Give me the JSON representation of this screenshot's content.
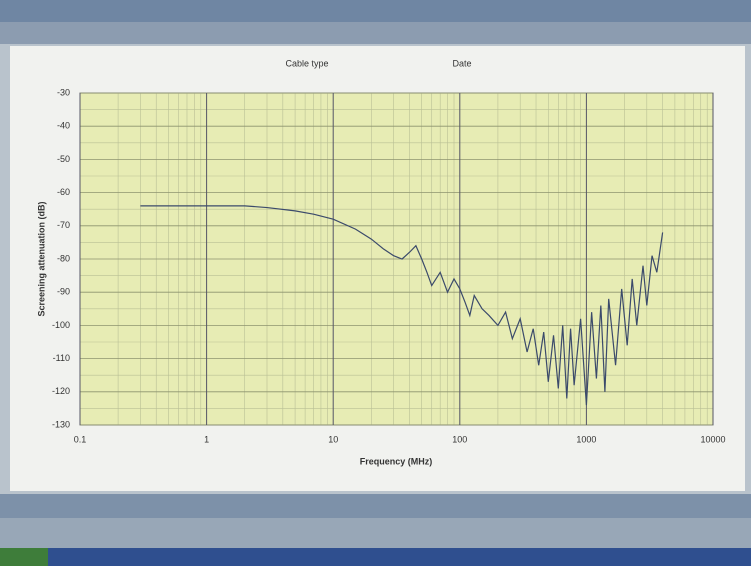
{
  "chart_data": {
    "type": "line",
    "annotations": [
      "Cable type",
      "Date"
    ],
    "xlabel": "Frequency (MHz)",
    "ylabel": "Screening attenuation (dB)",
    "xscale": "log",
    "xlim": [
      0.1,
      10000
    ],
    "xticks": [
      0.1,
      1,
      10,
      100,
      1000,
      10000
    ],
    "ylim": [
      -130,
      -30
    ],
    "yticks": [
      -30,
      -40,
      -50,
      -60,
      -70,
      -80,
      -90,
      -100,
      -110,
      -120,
      -130
    ],
    "grid": true,
    "series": [
      {
        "color": "#3b4a6b",
        "x": [
          0.3,
          0.5,
          1,
          2,
          3,
          5,
          7,
          10,
          15,
          20,
          25,
          30,
          35,
          40,
          45,
          50,
          55,
          60,
          70,
          80,
          90,
          100,
          110,
          120,
          130,
          150,
          170,
          200,
          230,
          260,
          300,
          340,
          380,
          420,
          460,
          500,
          550,
          600,
          650,
          700,
          750,
          800,
          900,
          1000,
          1100,
          1200,
          1300,
          1400,
          1500,
          1700,
          1900,
          2100,
          2300,
          2500,
          2800,
          3000,
          3300,
          3600,
          4000
        ],
        "values": [
          -64,
          -64,
          -64,
          -64,
          -64.5,
          -65.5,
          -66.5,
          -68,
          -71,
          -74,
          -77,
          -79,
          -80,
          -78,
          -76,
          -80,
          -84,
          -88,
          -84,
          -90,
          -86,
          -89,
          -93,
          -97,
          -91,
          -95,
          -97,
          -100,
          -96,
          -104,
          -98,
          -108,
          -101,
          -112,
          -102,
          -117,
          -103,
          -119,
          -100,
          -122,
          -101,
          -118,
          -98,
          -124,
          -96,
          -116,
          -94,
          -120,
          -92,
          -112,
          -89,
          -106,
          -86,
          -100,
          -82,
          -94,
          -79,
          -84,
          -72
        ]
      }
    ]
  }
}
